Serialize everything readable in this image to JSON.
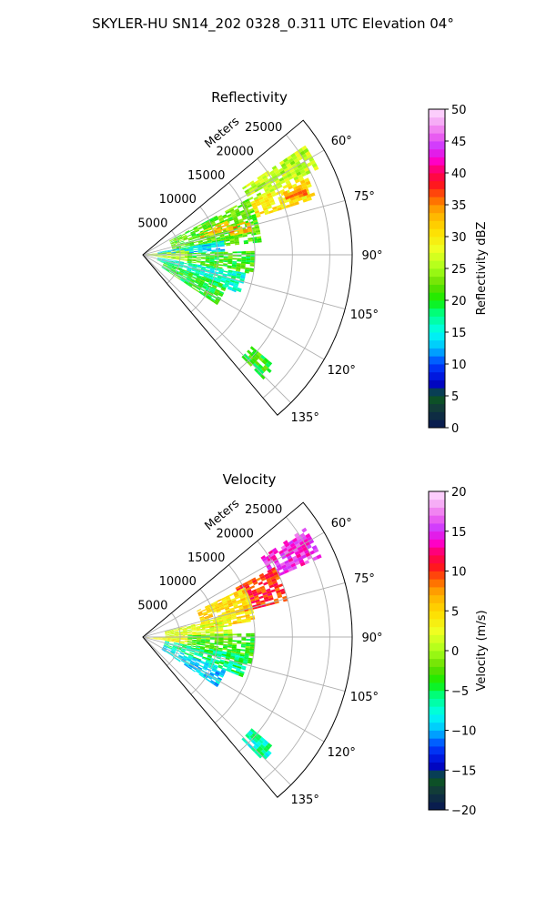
{
  "figure_title": "SKYLER-HU  SN14_202  0328_0.311 UTC Elevation 04°",
  "chart_data": [
    {
      "type": "heatmap",
      "projection": "polar-sector",
      "title": "Reflectivity",
      "radial_label": "Meters",
      "radial_ticks": [
        5000,
        10000,
        15000,
        20000,
        25000
      ],
      "radial_tick_labels": [
        "5000",
        "10000",
        "15000",
        "20000",
        "25000"
      ],
      "rmax": 28000,
      "azimuth_range_deg": [
        50,
        140
      ],
      "azimuth_ticks": [
        60,
        75,
        90,
        105,
        120,
        135
      ],
      "azimuth_tick_labels": [
        "60°",
        "75°",
        "90°",
        "105°",
        "120°",
        "135°"
      ],
      "grid": true,
      "colorbar": {
        "label": "Reflectivity dBZ",
        "min": 0,
        "max": 50,
        "ticks": [
          0,
          5,
          10,
          15,
          20,
          25,
          30,
          35,
          40,
          45,
          50
        ],
        "tick_labels": [
          "0",
          "5",
          "10",
          "15",
          "20",
          "25",
          "30",
          "35",
          "40",
          "45",
          "50"
        ]
      },
      "echo_regions": [
        {
          "az": [
            56,
            64
          ],
          "r": [
            16000,
            26000
          ],
          "value": 26
        },
        {
          "az": [
            64,
            72
          ],
          "r": [
            16000,
            24000
          ],
          "value": 30
        },
        {
          "az": [
            66,
            70
          ],
          "r": [
            20500,
            23000
          ],
          "value": 35
        },
        {
          "az": [
            62,
            84
          ],
          "r": [
            4000,
            16000
          ],
          "value": 22
        },
        {
          "az": [
            68,
            74
          ],
          "r": [
            8000,
            12000
          ],
          "value": 32
        },
        {
          "az": [
            72,
            78
          ],
          "r": [
            12000,
            15000
          ],
          "value": 34
        },
        {
          "az": [
            80,
            88
          ],
          "r": [
            2000,
            11000
          ],
          "value": 14
        },
        {
          "az": [
            84,
            98
          ],
          "r": [
            0,
            6000
          ],
          "value": 25
        },
        {
          "az": [
            88,
            100
          ],
          "r": [
            6000,
            15000
          ],
          "value": 21
        },
        {
          "az": [
            100,
            112
          ],
          "r": [
            2000,
            14000
          ],
          "value": 16
        },
        {
          "az": [
            110,
            124
          ],
          "r": [
            3000,
            12000
          ],
          "value": 20
        },
        {
          "az": [
            130,
            136
          ],
          "r": [
            19000,
            23000
          ],
          "value": 21
        }
      ]
    },
    {
      "type": "heatmap",
      "projection": "polar-sector",
      "title": "Velocity",
      "radial_label": "Meters",
      "radial_ticks": [
        5000,
        10000,
        15000,
        20000,
        25000
      ],
      "radial_tick_labels": [
        "5000",
        "10000",
        "15000",
        "20000",
        "25000"
      ],
      "rmax": 28000,
      "azimuth_range_deg": [
        50,
        140
      ],
      "azimuth_ticks": [
        60,
        75,
        90,
        105,
        120,
        135
      ],
      "azimuth_tick_labels": [
        "60°",
        "75°",
        "90°",
        "105°",
        "120°",
        "135°"
      ],
      "grid": true,
      "colorbar": {
        "label": "Velocity (m/s)",
        "min": -20,
        "max": 20,
        "ticks": [
          -20,
          -15,
          -10,
          -5,
          0,
          5,
          10,
          15,
          20
        ],
        "tick_labels": [
          "−20",
          "−15",
          "−10",
          "−5",
          "0",
          "5",
          "10",
          "15",
          "20"
        ]
      },
      "echo_regions": [
        {
          "az": [
            56,
            66
          ],
          "r": [
            19000,
            26000
          ],
          "value": 15
        },
        {
          "az": [
            62,
            76
          ],
          "r": [
            14000,
            20000
          ],
          "value": 10
        },
        {
          "az": [
            64,
            82
          ],
          "r": [
            8000,
            15000
          ],
          "value": 5
        },
        {
          "az": [
            76,
            92
          ],
          "r": [
            3000,
            12000
          ],
          "value": 2
        },
        {
          "az": [
            88,
            100
          ],
          "r": [
            0,
            6000
          ],
          "value": 3
        },
        {
          "az": [
            88,
            104
          ],
          "r": [
            6000,
            15000
          ],
          "value": -3
        },
        {
          "az": [
            100,
            112
          ],
          "r": [
            3000,
            14000
          ],
          "value": -6
        },
        {
          "az": [
            112,
            124
          ],
          "r": [
            3000,
            12000
          ],
          "value": -9
        },
        {
          "az": [
            130,
            136
          ],
          "r": [
            19000,
            23000
          ],
          "value": -7
        }
      ]
    }
  ]
}
